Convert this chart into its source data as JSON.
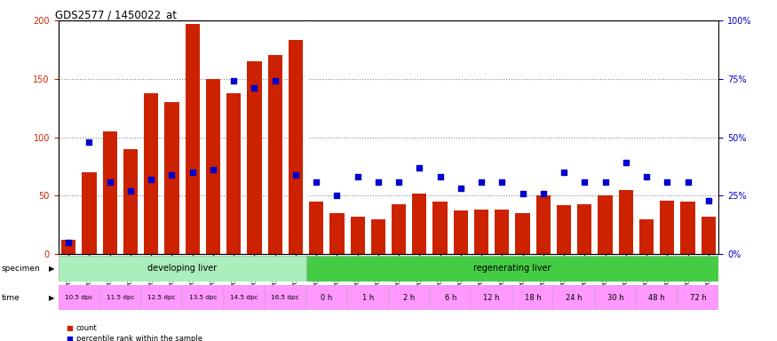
{
  "title": "GDS2577 / 1450022_at",
  "x_labels": [
    "GSM161128",
    "GSM161129",
    "GSM161130",
    "GSM161131",
    "GSM161132",
    "GSM161133",
    "GSM161134",
    "GSM161135",
    "GSM161136",
    "GSM161137",
    "GSM161138",
    "GSM161139",
    "GSM161108",
    "GSM161109",
    "GSM161110",
    "GSM161111",
    "GSM161112",
    "GSM161113",
    "GSM161114",
    "GSM161115",
    "GSM161116",
    "GSM161117",
    "GSM161118",
    "GSM161119",
    "GSM161120",
    "GSM161121",
    "GSM161122",
    "GSM161123",
    "GSM161124",
    "GSM161125",
    "GSM161126",
    "GSM161127"
  ],
  "bar_values": [
    12,
    70,
    105,
    90,
    138,
    130,
    197,
    150,
    138,
    165,
    170,
    183,
    45,
    35,
    32,
    30,
    43,
    52,
    45,
    37,
    38,
    38,
    35,
    50,
    42,
    43,
    50,
    55,
    30,
    46,
    45,
    32
  ],
  "blue_values_pct": [
    5,
    48,
    31,
    27,
    32,
    34,
    35,
    36,
    74,
    71,
    74,
    34,
    31,
    25,
    33,
    31,
    31,
    37,
    33,
    28,
    31,
    31,
    26,
    26,
    35,
    31,
    31,
    39,
    33,
    31,
    31,
    23
  ],
  "bar_color": "#cc2200",
  "blue_color": "#0000cc",
  "bg_color": "#ffffff",
  "plot_bg_color": "#ffffff",
  "ylim_left": [
    0,
    200
  ],
  "ylim_right": [
    0,
    100
  ],
  "yticks_left": [
    0,
    50,
    100,
    150,
    200
  ],
  "ytick_labels_left": [
    "0",
    "50",
    "100",
    "150",
    "200"
  ],
  "ytick_labels_right": [
    "0%",
    "25%",
    "50%",
    "75%",
    "100%"
  ],
  "time_labels_devel": [
    "10.5 dpc",
    "11.5 dpc",
    "12.5 dpc",
    "13.5 dpc",
    "14.5 dpc",
    "16.5 dpc"
  ],
  "time_labels_regen": [
    "0 h",
    "1 h",
    "2 h",
    "6 h",
    "12 h",
    "18 h",
    "24 h",
    "30 h",
    "48 h",
    "72 h"
  ],
  "time_devel_counts": [
    2,
    2,
    2,
    2,
    2,
    2
  ],
  "time_regen_counts": [
    2,
    2,
    2,
    2,
    2,
    2,
    2,
    2,
    2,
    2
  ],
  "dev_color": "#aaeebb",
  "regen_color": "#44cc44",
  "time_row_color": "#ff99ff",
  "time_row_color_alt": "#ffffff"
}
